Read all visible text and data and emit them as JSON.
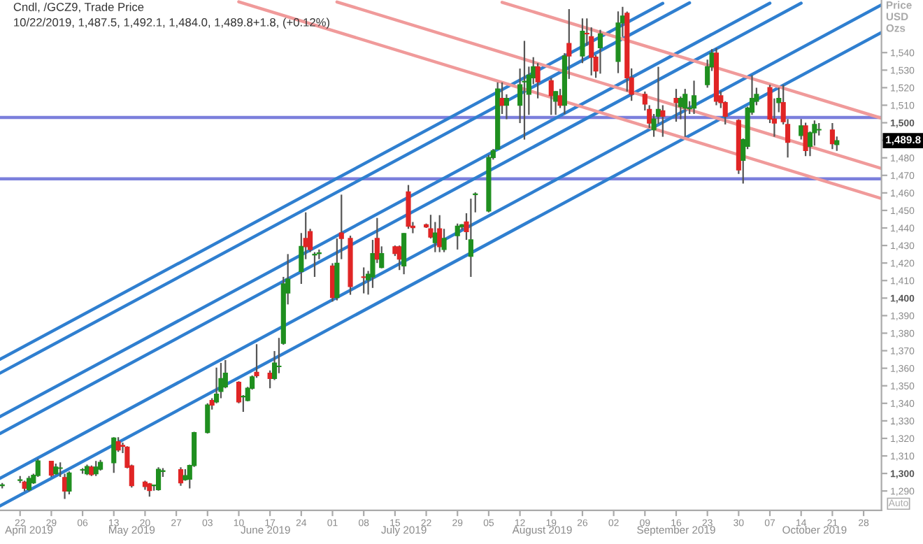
{
  "chart_data": {
    "type": "candlestick",
    "title": "Cndl, /GCZ9, Trade Price",
    "subtitle": "10/22/2019, 1,487.5, 1,492.1, 1,484.0, 1,489.8+1.8, (+0.12%)",
    "ylabel": "Price\nUSD\nOzs",
    "annotations": [
      "1,489.8",
      "Auto"
    ],
    "x": [
      "2019-04-18",
      "2019-04-22",
      "2019-04-23",
      "2019-04-24",
      "2019-04-25",
      "2019-04-26",
      "2019-04-29",
      "2019-04-30",
      "2019-05-01",
      "2019-05-02",
      "2019-05-03",
      "2019-05-06",
      "2019-05-07",
      "2019-05-08",
      "2019-05-09",
      "2019-05-10",
      "2019-05-13",
      "2019-05-14",
      "2019-05-15",
      "2019-05-16",
      "2019-05-17",
      "2019-05-20",
      "2019-05-21",
      "2019-05-22",
      "2019-05-23",
      "2019-05-24",
      "2019-05-28",
      "2019-05-29",
      "2019-05-30",
      "2019-05-31",
      "2019-06-03",
      "2019-06-04",
      "2019-06-05",
      "2019-06-06",
      "2019-06-07",
      "2019-06-10",
      "2019-06-11",
      "2019-06-12",
      "2019-06-13",
      "2019-06-14",
      "2019-06-17",
      "2019-06-18",
      "2019-06-19",
      "2019-06-20",
      "2019-06-21",
      "2019-06-24",
      "2019-06-25",
      "2019-06-26",
      "2019-06-27",
      "2019-06-28",
      "2019-07-01",
      "2019-07-02",
      "2019-07-03",
      "2019-07-05",
      "2019-07-08",
      "2019-07-09",
      "2019-07-10",
      "2019-07-11",
      "2019-07-12",
      "2019-07-15",
      "2019-07-16",
      "2019-07-17",
      "2019-07-18",
      "2019-07-19",
      "2019-07-22",
      "2019-07-23",
      "2019-07-24",
      "2019-07-25",
      "2019-07-26",
      "2019-07-29",
      "2019-07-30",
      "2019-07-31",
      "2019-08-01",
      "2019-08-02",
      "2019-08-05",
      "2019-08-06",
      "2019-08-07",
      "2019-08-08",
      "2019-08-09",
      "2019-08-12",
      "2019-08-13",
      "2019-08-14",
      "2019-08-15",
      "2019-08-16",
      "2019-08-19",
      "2019-08-20",
      "2019-08-21",
      "2019-08-22",
      "2019-08-23",
      "2019-08-26",
      "2019-08-27",
      "2019-08-28",
      "2019-08-29",
      "2019-08-30",
      "2019-09-03",
      "2019-09-04",
      "2019-09-05",
      "2019-09-06",
      "2019-09-09",
      "2019-09-10",
      "2019-09-11",
      "2019-09-12",
      "2019-09-13",
      "2019-09-16",
      "2019-09-17",
      "2019-09-18",
      "2019-09-19",
      "2019-09-20",
      "2019-09-23",
      "2019-09-24",
      "2019-09-25",
      "2019-09-26",
      "2019-09-27",
      "2019-09-30",
      "2019-10-01",
      "2019-10-02",
      "2019-10-03",
      "2019-10-04",
      "2019-10-07",
      "2019-10-08",
      "2019-10-09",
      "2019-10-10",
      "2019-10-11",
      "2019-10-14",
      "2019-10-15",
      "2019-10-16",
      "2019-10-17",
      "2019-10-18",
      "2019-10-21",
      "2019-10-22"
    ],
    "ohlc": [
      [
        1293.0,
        1294.6,
        1291.5,
        1293.5
      ],
      [
        1296.0,
        1298.5,
        1294.6,
        1296.4
      ],
      [
        1295.1,
        1295.9,
        1289.9,
        1291.5
      ],
      [
        1290.7,
        1298.5,
        1289.9,
        1297.2
      ],
      [
        1294.6,
        1299.8,
        1294.1,
        1299.0
      ],
      [
        1298.8,
        1308.2,
        1298.0,
        1307.1
      ],
      [
        1306.9,
        1307.1,
        1298.0,
        1299.0
      ],
      [
        1299.8,
        1305.6,
        1299.3,
        1303.7
      ],
      [
        1302.9,
        1306.3,
        1298.0,
        1303.0
      ],
      [
        1297.7,
        1299.8,
        1285.5,
        1289.9
      ],
      [
        1289.9,
        1301.1,
        1288.1,
        1300.3
      ],
      [
        1301.9,
        1303.0,
        1299.8,
        1302.2
      ],
      [
        1299.8,
        1305.0,
        1299.0,
        1304.0
      ],
      [
        1303.7,
        1304.5,
        1298.5,
        1299.3
      ],
      [
        1299.8,
        1307.1,
        1298.5,
        1303.7
      ],
      [
        1302.4,
        1307.7,
        1301.6,
        1306.3
      ],
      [
        1306.1,
        1320.7,
        1300.3,
        1320.2
      ],
      [
        1318.1,
        1320.7,
        1312.3,
        1313.4
      ],
      [
        1316.0,
        1317.6,
        1311.6,
        1315.5
      ],
      [
        1315.0,
        1315.5,
        1302.9,
        1303.5
      ],
      [
        1304.3,
        1305.0,
        1292.0,
        1293.0
      ],
      [
        1295.1,
        1295.9,
        1290.7,
        1292.5
      ],
      [
        1294.1,
        1294.6,
        1286.8,
        1290.2
      ],
      [
        1293.0,
        1293.6,
        1290.2,
        1293.4
      ],
      [
        1290.7,
        1303.5,
        1290.2,
        1302.4
      ],
      [
        1301.1,
        1303.0,
        1298.0,
        1301.6
      ],
      [
        1302.2,
        1303.5,
        1293.0,
        1294.6
      ],
      [
        1296.4,
        1302.4,
        1295.9,
        1298.8
      ],
      [
        1296.7,
        1305.0,
        1291.5,
        1304.5
      ],
      [
        1304.5,
        1323.8,
        1303.7,
        1323.3
      ],
      [
        1323.3,
        1340.0,
        1322.8,
        1339.0
      ],
      [
        1341.6,
        1342.9,
        1336.4,
        1339.0
      ],
      [
        1340.8,
        1360.4,
        1340.0,
        1345.2
      ],
      [
        1346.8,
        1363.0,
        1342.9,
        1354.1
      ],
      [
        1349.4,
        1364.6,
        1348.6,
        1357.2
      ],
      [
        1352.0,
        1352.6,
        1340.0,
        1340.8
      ],
      [
        1343.7,
        1344.7,
        1335.1,
        1343.9
      ],
      [
        1341.6,
        1349.4,
        1341.1,
        1348.6
      ],
      [
        1348.6,
        1355.9,
        1347.8,
        1355.1
      ],
      [
        1357.7,
        1373.7,
        1354.6,
        1355.7
      ],
      [
        1357.2,
        1358.8,
        1348.6,
        1354.1
      ],
      [
        1354.1,
        1369.8,
        1353.3,
        1363.0
      ],
      [
        1360.9,
        1377.3,
        1357.2,
        1361.2
      ],
      [
        1374.2,
        1412.1,
        1373.4,
        1408.1
      ],
      [
        1402.9,
        1425.1,
        1396.4,
        1410.8
      ],
      [
        1415.2,
        1437.1,
        1408.1,
        1429.5
      ],
      [
        1434.0,
        1448.9,
        1422.2,
        1429.3
      ],
      [
        1437.9,
        1439.5,
        1426.2,
        1427.7
      ],
      [
        1424.6,
        1426.2,
        1412.1,
        1425.0
      ],
      [
        1425.4,
        1427.7,
        1422.2,
        1425.8
      ],
      [
        1418.3,
        1419.9,
        1398.0,
        1400.3
      ],
      [
        1400.3,
        1434.0,
        1398.7,
        1419.9
      ],
      [
        1437.1,
        1459.0,
        1422.2,
        1434.0
      ],
      [
        1434.0,
        1435.6,
        1401.9,
        1406.6
      ],
      [
        1412.1,
        1417.5,
        1402.7,
        1411.8
      ],
      [
        1410.5,
        1415.5,
        1402.0,
        1413.6
      ],
      [
        1412.1,
        1433.2,
        1405.8,
        1425.4
      ],
      [
        1434.0,
        1445.7,
        1420.0,
        1422.2
      ],
      [
        1417.5,
        1429.5,
        1417.0,
        1425.4
      ],
      [
        1429.3,
        1430.0,
        1424.0,
        1425.4
      ],
      [
        1429.3,
        1430.0,
        1416.0,
        1422.2
      ],
      [
        1418.3,
        1437.1,
        1413.6,
        1436.8
      ],
      [
        1460.6,
        1464.5,
        1439.5,
        1441.0
      ],
      [
        1441.0,
        1443.4,
        1437.0,
        1440.2
      ],
      [
        1441.8,
        1442.5,
        1440.0,
        1440.6
      ],
      [
        1439.5,
        1447.5,
        1434.0,
        1434.8
      ],
      [
        1431.6,
        1443.4,
        1426.2,
        1437.1
      ],
      [
        1439.5,
        1447.3,
        1426.2,
        1429.3
      ],
      [
        1427.7,
        1439.5,
        1426.2,
        1434.0
      ],
      [
        1435.6,
        1442.5,
        1427.7,
        1441.0
      ],
      [
        1440.6,
        1442.2,
        1439.0,
        1441.8
      ],
      [
        1443.4,
        1448.4,
        1433.2,
        1437.9
      ],
      [
        1423.8,
        1456.7,
        1412.1,
        1433.2
      ],
      [
        1459.0,
        1460.3,
        1448.9,
        1459.4
      ],
      [
        1449.7,
        1481.6,
        1448.9,
        1480.2
      ],
      [
        1480.2,
        1485.0,
        1479.0,
        1484.1
      ],
      [
        1484.9,
        1523.0,
        1484.9,
        1519.3
      ],
      [
        1513.9,
        1523.0,
        1505.0,
        1510.0
      ],
      [
        1510.0,
        1516.2,
        1502.0,
        1513.9
      ],
      [
        1510.0,
        1530.9,
        1499.8,
        1521.7
      ],
      [
        1523.3,
        1546.7,
        1490.4,
        1523.6
      ],
      [
        1516.2,
        1532.0,
        1504.5,
        1527.2
      ],
      [
        1525.6,
        1537.4,
        1522.0,
        1531.9
      ],
      [
        1531.9,
        1534.0,
        1513.9,
        1523.3
      ],
      [
        1524.0,
        1525.6,
        1504.5,
        1515.4
      ],
      [
        1512.3,
        1518.0,
        1504.5,
        1517.8
      ],
      [
        1515.4,
        1519.3,
        1508.4,
        1510.0
      ],
      [
        1510.0,
        1539.7,
        1505.0,
        1538.1
      ],
      [
        1545.2,
        1564.8,
        1525.0,
        1538.1
      ],
      [
        1538.1,
        1559.5,
        1534.0,
        1552.2
      ],
      [
        1551.0,
        1559.5,
        1543.9,
        1550.7
      ],
      [
        1549.1,
        1554.4,
        1527.0,
        1537.4
      ],
      [
        1537.4,
        1538.6,
        1525.6,
        1529.5
      ],
      [
        1542.8,
        1553.0,
        1528.0,
        1550.7
      ],
      [
        1535.0,
        1563.5,
        1528.3,
        1556.9
      ],
      [
        1556.9,
        1566.1,
        1549.0,
        1560.9
      ],
      [
        1562.4,
        1563.4,
        1517.8,
        1525.6
      ],
      [
        1525.6,
        1531.0,
        1512.5,
        1516.2
      ],
      [
        1516.2,
        1517.8,
        1507.0,
        1510.7
      ],
      [
        1507.6,
        1510.0,
        1497.0,
        1499.8
      ],
      [
        1496.0,
        1505.0,
        1492.0,
        1502.1
      ],
      [
        1503.7,
        1531.9,
        1499.4,
        1507.6
      ],
      [
        1506.8,
        1510.0,
        1492.0,
        1503.7
      ],
      [
        1513.9,
        1519.3,
        1500.6,
        1511.5
      ],
      [
        1509.2,
        1515.0,
        1502.0,
        1513.9
      ],
      [
        1508.4,
        1519.3,
        1492.0,
        1516.2
      ],
      [
        1508.0,
        1512.3,
        1505.0,
        1508.4
      ],
      [
        1508.4,
        1524.0,
        1505.0,
        1515.4
      ],
      [
        1521.7,
        1536.0,
        1520.0,
        1531.9
      ],
      [
        1531.9,
        1542.0,
        1529.5,
        1539.7
      ],
      [
        1539.7,
        1542.5,
        1510.0,
        1512.3
      ],
      [
        1515.4,
        1518.0,
        1508.4,
        1511.5
      ],
      [
        1511.5,
        1512.3,
        1499.0,
        1503.7
      ],
      [
        1501.3,
        1502.0,
        1470.8,
        1473.1
      ],
      [
        1478.6,
        1491.0,
        1465.3,
        1490.4
      ],
      [
        1486.5,
        1509.2,
        1485.0,
        1508.4
      ],
      [
        1506.0,
        1527.0,
        1504.5,
        1513.9
      ],
      [
        1512.3,
        1520.0,
        1510.0,
        1516.2
      ],
      [
        1520.1,
        1521.7,
        1499.8,
        1502.1
      ],
      [
        1502.1,
        1513.9,
        1492.0,
        1499.8
      ],
      [
        1511.5,
        1520.1,
        1506.0,
        1513.9
      ],
      [
        1511.5,
        1521.7,
        1499.0,
        1500.6
      ],
      [
        1499.0,
        1502.1,
        1480.2,
        1488.8
      ],
      [
        1492.7,
        1502.1,
        1490.4,
        1498.2
      ],
      [
        1498.2,
        1500.0,
        1481.0,
        1484.1
      ],
      [
        1486.5,
        1495.0,
        1481.0,
        1494.3
      ],
      [
        1494.3,
        1501.3,
        1487.0,
        1499.0
      ],
      [
        1495.9,
        1499.8,
        1492.7,
        1496.2
      ],
      [
        1495.9,
        1499.8,
        1485.0,
        1488.0
      ],
      [
        1487.5,
        1492.1,
        1484.0,
        1489.8
      ]
    ],
    "series": [
      {
        "type": "line",
        "color": "#2f7fd0",
        "x": [
          "2019-04-17T12:00",
          "2019-09-13"
        ],
        "values": [
          1365.1,
          1568.1
        ]
      },
      {
        "type": "line",
        "color": "#2f7fd0",
        "x": [
          "2019-04-17T12:00",
          "2019-09-19"
        ],
        "values": [
          1357.2,
          1568.4
        ]
      },
      {
        "type": "line",
        "color": "#2f7fd0",
        "x": [
          "2019-04-17T12:00",
          "2019-10-07"
        ],
        "values": [
          1332.4,
          1568.2
        ]
      },
      {
        "type": "line",
        "color": "#2f7fd0",
        "x": [
          "2019-04-17T12:00",
          "2019-10-14"
        ],
        "values": [
          1322.8,
          1568.2
        ]
      },
      {
        "type": "line",
        "color": "#2f7fd0",
        "x": [
          "2019-04-17T12:00",
          "2019-11-01"
        ],
        "values": [
          1297.2,
          1567.2
        ]
      },
      {
        "type": "line",
        "color": "#2f7fd0",
        "x": [
          "2019-04-17T12:00",
          "2019-11-01"
        ],
        "values": [
          1281.5,
          1551.5
        ]
      },
      {
        "type": "line",
        "color": "#f09a9a",
        "x": [
          "2019-08-08",
          "2019-11-01"
        ],
        "values": [
          1568.7,
          1502.6
        ]
      },
      {
        "type": "line",
        "color": "#f09a9a",
        "x": [
          "2019-07-02",
          "2019-11-01"
        ],
        "values": [
          1568.9,
          1473.9
        ]
      },
      {
        "type": "line",
        "color": "#f09a9a",
        "x": [
          "2019-06-10",
          "2019-11-01"
        ],
        "values": [
          1569.0,
          1456.8
        ]
      }
    ],
    "ref_lines": [
      {
        "axis": "y",
        "value": 1503,
        "color": "#7b7fdc"
      },
      {
        "axis": "y",
        "value": 1468,
        "color": "#7b7fdc"
      }
    ],
    "xlim": [
      "2019-04-17T12:00",
      "2019-11-01"
    ],
    "xticks": [
      {
        "value": "2019-04-22",
        "label": "22"
      },
      {
        "value": "2019-04-29",
        "label": "29"
      },
      {
        "value": "2019-05-06",
        "label": "06"
      },
      {
        "value": "2019-05-13",
        "label": "13"
      },
      {
        "value": "2019-05-20",
        "label": "20"
      },
      {
        "value": "2019-05-27",
        "label": "27"
      },
      {
        "value": "2019-06-03",
        "label": "03"
      },
      {
        "value": "2019-06-10",
        "label": "10"
      },
      {
        "value": "2019-06-17",
        "label": "17"
      },
      {
        "value": "2019-06-24",
        "label": "24"
      },
      {
        "value": "2019-07-01",
        "label": "01"
      },
      {
        "value": "2019-07-08",
        "label": "08"
      },
      {
        "value": "2019-07-15",
        "label": "15"
      },
      {
        "value": "2019-07-22",
        "label": "22"
      },
      {
        "value": "2019-07-29",
        "label": "29"
      },
      {
        "value": "2019-08-05",
        "label": "05"
      },
      {
        "value": "2019-08-12",
        "label": "12"
      },
      {
        "value": "2019-08-19",
        "label": "19"
      },
      {
        "value": "2019-08-26",
        "label": "26"
      },
      {
        "value": "2019-09-02",
        "label": "02"
      },
      {
        "value": "2019-09-09",
        "label": "09"
      },
      {
        "value": "2019-09-16",
        "label": "16"
      },
      {
        "value": "2019-09-23",
        "label": "23"
      },
      {
        "value": "2019-09-30",
        "label": "30"
      },
      {
        "value": "2019-10-07",
        "label": "07"
      },
      {
        "value": "2019-10-14",
        "label": "14"
      },
      {
        "value": "2019-10-21",
        "label": "21"
      },
      {
        "value": "2019-10-28",
        "label": "28"
      }
    ],
    "x2lim": [
      "2019-04-17T12:00",
      "2019-11-01"
    ],
    "x2ticks": [
      {
        "value": "2019-04-24",
        "label": "April 2019"
      },
      {
        "value": "2019-05-17",
        "label": "May 2019"
      },
      {
        "value": "2019-06-16",
        "label": "June 2019"
      },
      {
        "value": "2019-07-17",
        "label": "July 2019"
      },
      {
        "value": "2019-08-17",
        "label": "August 2019"
      },
      {
        "value": "2019-09-16",
        "label": "September 2019"
      },
      {
        "value": "2019-10-17",
        "label": "October 2019"
      }
    ],
    "ylim": [
      1279,
      1570
    ],
    "yticks": [
      {
        "value": 1290,
        "label": "1,290"
      },
      {
        "value": 1300,
        "label": "1,300"
      },
      {
        "value": 1310,
        "label": "1,310"
      },
      {
        "value": 1320,
        "label": "1,320"
      },
      {
        "value": 1330,
        "label": "1,330"
      },
      {
        "value": 1340,
        "label": "1,340"
      },
      {
        "value": 1350,
        "label": "1,350"
      },
      {
        "value": 1360,
        "label": "1,360"
      },
      {
        "value": 1370,
        "label": "1,370"
      },
      {
        "value": 1380,
        "label": "1,380"
      },
      {
        "value": 1390,
        "label": "1,390"
      },
      {
        "value": 1400,
        "label": "1,400"
      },
      {
        "value": 1410,
        "label": "1,410"
      },
      {
        "value": 1420,
        "label": "1,420"
      },
      {
        "value": 1430,
        "label": "1,430"
      },
      {
        "value": 1440,
        "label": "1,440"
      },
      {
        "value": 1450,
        "label": "1,450"
      },
      {
        "value": 1460,
        "label": "1,460"
      },
      {
        "value": 1470,
        "label": "1,470"
      },
      {
        "value": 1480,
        "label": "1,480"
      },
      {
        "value": 1490,
        "label": null
      },
      {
        "value": 1500,
        "label": "1,500"
      },
      {
        "value": 1510,
        "label": "1,510"
      },
      {
        "value": 1520,
        "label": "1,520"
      },
      {
        "value": 1530,
        "label": "1,530"
      },
      {
        "value": 1540,
        "label": "1,540"
      }
    ],
    "grid": false,
    "legend": false
  }
}
